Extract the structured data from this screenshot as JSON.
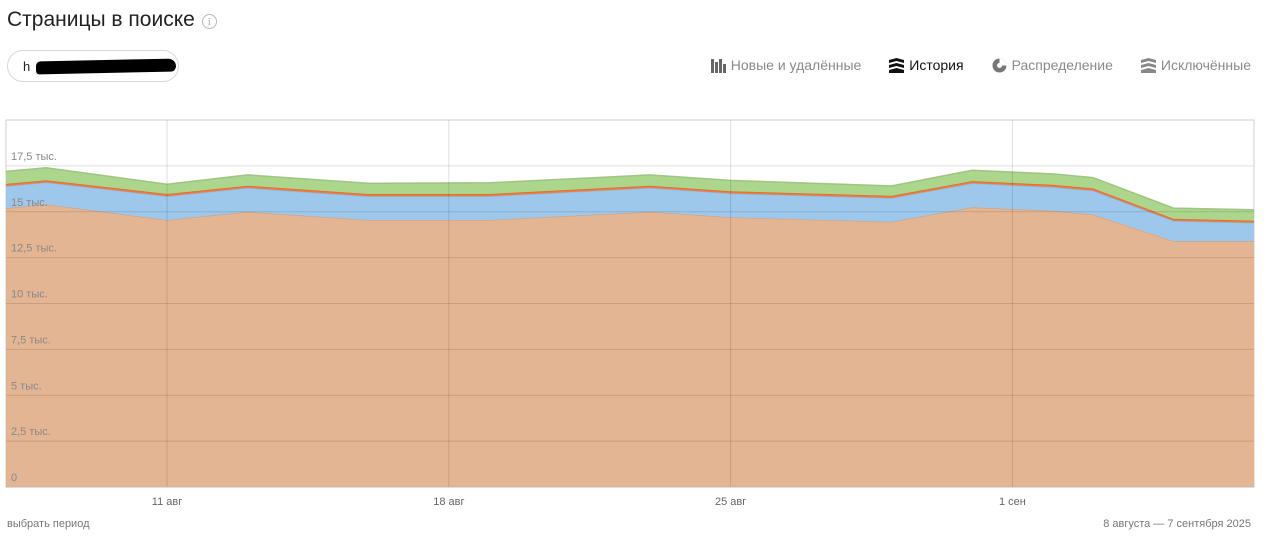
{
  "header": {
    "title": "Страницы в поиске",
    "info_glyph": "i"
  },
  "host_selector": {
    "value": "h"
  },
  "tabs": [
    {
      "label": "Новые и удалённые",
      "icon": "bar-chart-icon",
      "active": false
    },
    {
      "label": "История",
      "icon": "layers-icon",
      "active": true
    },
    {
      "label": "Распределение",
      "icon": "pie-chart-icon",
      "active": false
    },
    {
      "label": "Исключённые",
      "icon": "excluded-layers-icon",
      "active": false
    }
  ],
  "footer": {
    "period_link": "выбрать период",
    "date_range": "8 августа — 7 сентября 2025"
  },
  "chart_data": {
    "type": "area",
    "stacked": true,
    "x": [
      "2025-08-07",
      "2025-08-08",
      "2025-08-11",
      "2025-08-13",
      "2025-08-16",
      "2025-08-19",
      "2025-08-23",
      "2025-08-25",
      "2025-08-29",
      "2025-08-31",
      "2025-09-02",
      "2025-09-03",
      "2025-09-05",
      "2025-09-07"
    ],
    "x_tick_labels": [
      "11 авг",
      "18 авг",
      "25 авг",
      "1 сен"
    ],
    "y_tick_labels": [
      "0",
      "2,5 тыс.",
      "5 тыс.",
      "7,5 тыс.",
      "10 тыс.",
      "12,5 тыс.",
      "15 тыс.",
      "17,5 тыс."
    ],
    "ylim": [
      0,
      20000
    ],
    "grid": true,
    "series": [
      {
        "color": "#e4b593",
        "values": [
          15200,
          15400,
          14550,
          15000,
          14550,
          14550,
          15000,
          14700,
          14450,
          15250,
          15050,
          14850,
          13400,
          13400
        ]
      },
      {
        "color": "#9dc8ec",
        "values": [
          1200,
          1200,
          1300,
          1300,
          1300,
          1300,
          1300,
          1300,
          1300,
          1300,
          1300,
          1300,
          1100,
          1000
        ]
      },
      {
        "color": "#f07a3c",
        "values": [
          120,
          120,
          120,
          120,
          120,
          120,
          120,
          120,
          120,
          120,
          120,
          120,
          120,
          120
        ]
      },
      {
        "color": "#acd68c",
        "values": [
          680,
          680,
          530,
          590,
          580,
          610,
          590,
          590,
          540,
          590,
          590,
          590,
          580,
          590
        ]
      }
    ],
    "title": "",
    "xlabel": "",
    "ylabel": ""
  }
}
